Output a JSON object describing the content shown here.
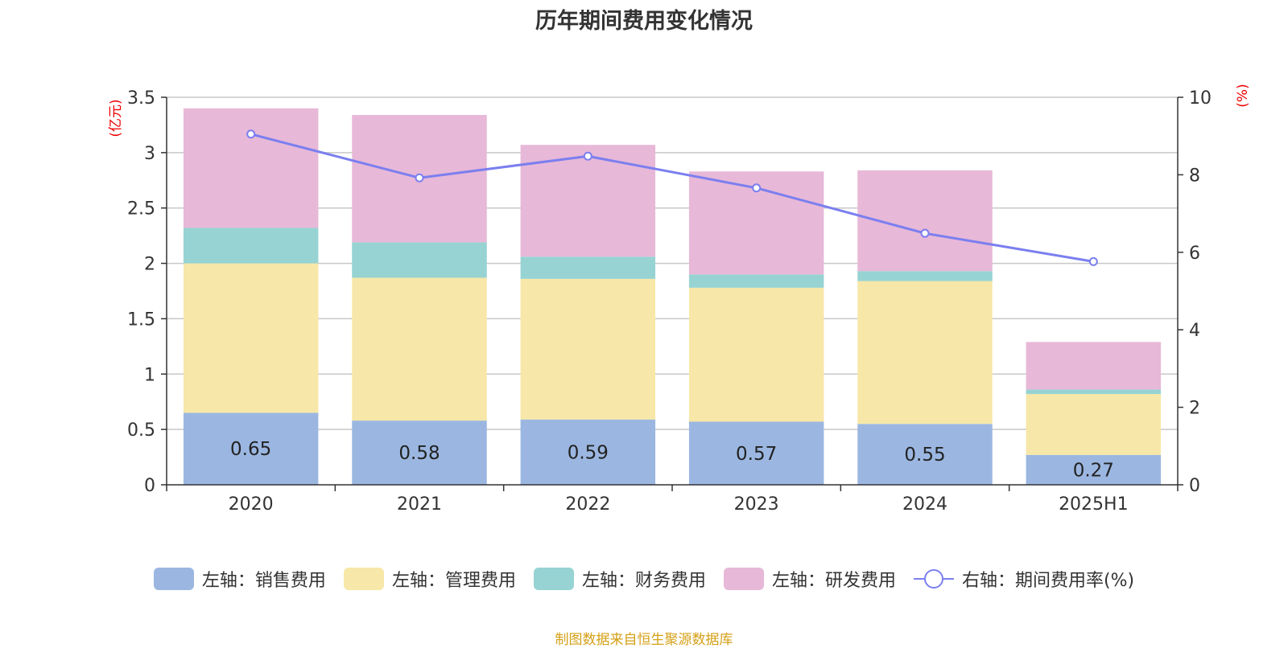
{
  "title": "历年期间费用变化情况",
  "source": "制图数据来自恒生聚源数据库",
  "chart_data": {
    "type": "bar",
    "stacked": true,
    "title": "历年期间费用变化情况",
    "categories": [
      "2020",
      "2021",
      "2022",
      "2023",
      "2024",
      "2025H1"
    ],
    "left_axis": {
      "unit_label": "(亿元)",
      "ylim": [
        0,
        3.5
      ],
      "ticks": [
        "0",
        "0.5",
        "1",
        "1.5",
        "2",
        "2.5",
        "3",
        "3.5"
      ]
    },
    "right_axis": {
      "unit_label": "(%)",
      "ylim": [
        0,
        10
      ],
      "ticks": [
        "0",
        "2",
        "4",
        "6",
        "8",
        "10"
      ]
    },
    "series": [
      {
        "name": "左轴：销售费用",
        "axis": "left",
        "color": "#9BB7E1",
        "values": [
          0.65,
          0.58,
          0.59,
          0.57,
          0.55,
          0.27
        ],
        "labels": [
          "0.65",
          "0.58",
          "0.59",
          "0.57",
          "0.55",
          "0.27"
        ]
      },
      {
        "name": "左轴：管理费用",
        "axis": "left",
        "color": "#F7E7A8",
        "values": [
          1.35,
          1.29,
          1.27,
          1.21,
          1.29,
          0.55
        ]
      },
      {
        "name": "左轴：财务费用",
        "axis": "left",
        "color": "#97D3D3",
        "values": [
          0.32,
          0.32,
          0.2,
          0.12,
          0.09,
          0.04
        ]
      },
      {
        "name": "左轴：研发费用",
        "axis": "left",
        "color": "#E7B8D8",
        "values": [
          1.08,
          1.15,
          1.01,
          0.93,
          0.91,
          0.43
        ]
      },
      {
        "name": "右轴：期间费用率(%)",
        "axis": "right",
        "type": "line",
        "color": "#7B7FEF",
        "values": [
          9.05,
          7.92,
          8.48,
          7.66,
          6.49,
          5.76
        ]
      }
    ],
    "grid": true,
    "legend_position": "bottom"
  }
}
